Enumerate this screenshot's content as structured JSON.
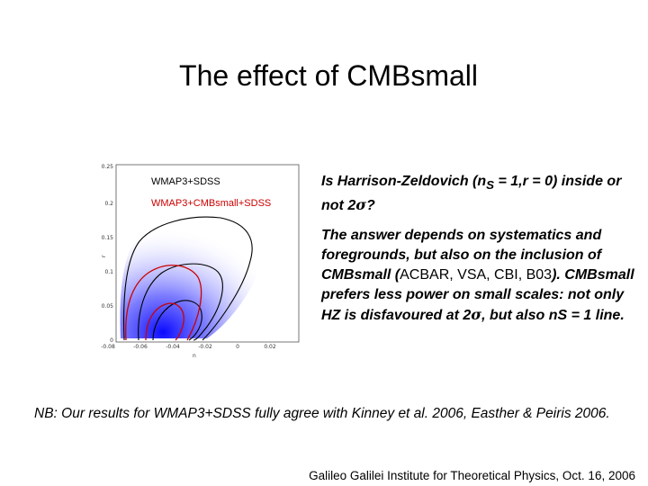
{
  "slide": {
    "title": "The effect of CMBsmall"
  },
  "chart_data": {
    "type": "contour",
    "xlabel": "n",
    "ylabel": "r",
    "xlim": [
      -0.11,
      0.03
    ],
    "ylim": [
      0,
      0.26
    ],
    "x_ticks": [
      "-0.08",
      "-0.06",
      "-0.04",
      "-0.02",
      "0",
      "0.02"
    ],
    "y_ticks": [
      "0",
      "0.05",
      "0.1",
      "0.15",
      "0.2",
      "0.25"
    ],
    "legend": [
      "WMAP3+SDSS",
      "WMAP3+CMBsmall+SDSS"
    ],
    "colors": {
      "wmap_sdss": "#000000",
      "wmap_cmbsmall_sdss": "#cc0000",
      "contour_fill": "#1a1aff"
    }
  },
  "text": {
    "question_a": "Is Harrison-Zeldovich (n",
    "question_sub": "S",
    "question_b": " = 1,r = 0) inside or not 2",
    "question_sigma": "σ",
    "question_c": "?",
    "answer_a": "The answer depends on systematics and foregrounds, but also on the inclusion of CMBsmall (",
    "answer_list": "ACBAR, VSA, CBI, B03",
    "answer_b": "). CMBsmall prefers less power on small scales: not only HZ is disfavoured at 2",
    "answer_sigma": "σ",
    "answer_c": ", but also nS = 1 line.",
    "nb": "NB: Our results for WMAP3+SDSS fully agree with Kinney et al. 2006, Easther & Peiris 2006.",
    "footer": "Galileo Galilei Institute for Theoretical Physics, Oct. 16, 2006"
  }
}
